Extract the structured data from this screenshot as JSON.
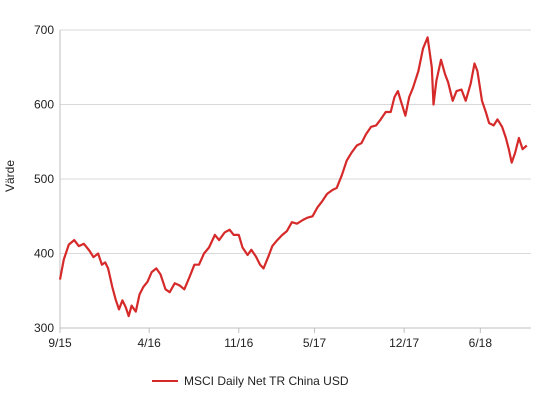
{
  "chart_data": {
    "type": "line",
    "title": "",
    "xlabel": "",
    "ylabel": "Värde",
    "ylim": [
      300,
      700
    ],
    "yticks": [
      300,
      400,
      500,
      600,
      700
    ],
    "xlim": [
      "2015-09-01",
      "2018-09-30"
    ],
    "xticks": [
      {
        "date": "2015-09-01",
        "label": "9/15"
      },
      {
        "date": "2016-04-01",
        "label": "4/16"
      },
      {
        "date": "2016-11-01",
        "label": "11/16"
      },
      {
        "date": "2017-05-01",
        "label": "5/17"
      },
      {
        "date": "2017-12-01",
        "label": "12/17"
      },
      {
        "date": "2018-06-01",
        "label": "6/18"
      }
    ],
    "grid": {
      "horizontal": true,
      "vertical": false
    },
    "legend_position": "bottom",
    "series": [
      {
        "name": "MSCI Daily Net TR China USD",
        "color": "#d62a2a",
        "points": [
          [
            "2015-09-01",
            365
          ],
          [
            "2015-09-10",
            392
          ],
          [
            "2015-09-22",
            412
          ],
          [
            "2015-10-05",
            418
          ],
          [
            "2015-10-16",
            410
          ],
          [
            "2015-10-28",
            413
          ],
          [
            "2015-11-10",
            404
          ],
          [
            "2015-11-20",
            395
          ],
          [
            "2015-12-01",
            400
          ],
          [
            "2015-12-10",
            385
          ],
          [
            "2015-12-18",
            388
          ],
          [
            "2015-12-25",
            380
          ],
          [
            "2016-01-04",
            355
          ],
          [
            "2016-01-12",
            338
          ],
          [
            "2016-01-20",
            325
          ],
          [
            "2016-01-28",
            337
          ],
          [
            "2016-02-05",
            328
          ],
          [
            "2016-02-12",
            316
          ],
          [
            "2016-02-19",
            330
          ],
          [
            "2016-02-29",
            322
          ],
          [
            "2016-03-09",
            345
          ],
          [
            "2016-03-18",
            355
          ],
          [
            "2016-03-28",
            362
          ],
          [
            "2016-04-07",
            375
          ],
          [
            "2016-04-18",
            380
          ],
          [
            "2016-04-28",
            372
          ],
          [
            "2016-05-10",
            352
          ],
          [
            "2016-05-20",
            348
          ],
          [
            "2016-06-01",
            360
          ],
          [
            "2016-06-13",
            357
          ],
          [
            "2016-06-24",
            352
          ],
          [
            "2016-07-06",
            368
          ],
          [
            "2016-07-18",
            385
          ],
          [
            "2016-07-29",
            385
          ],
          [
            "2016-08-10",
            400
          ],
          [
            "2016-08-22",
            408
          ],
          [
            "2016-09-05",
            425
          ],
          [
            "2016-09-15",
            418
          ],
          [
            "2016-09-28",
            428
          ],
          [
            "2016-10-10",
            432
          ],
          [
            "2016-10-20",
            425
          ],
          [
            "2016-11-01",
            425
          ],
          [
            "2016-11-10",
            408
          ],
          [
            "2016-11-22",
            398
          ],
          [
            "2016-12-01",
            405
          ],
          [
            "2016-12-12",
            396
          ],
          [
            "2016-12-22",
            385
          ],
          [
            "2016-12-30",
            380
          ],
          [
            "2017-01-10",
            395
          ],
          [
            "2017-01-20",
            410
          ],
          [
            "2017-02-01",
            418
          ],
          [
            "2017-02-13",
            425
          ],
          [
            "2017-02-24",
            430
          ],
          [
            "2017-03-08",
            442
          ],
          [
            "2017-03-20",
            440
          ],
          [
            "2017-04-03",
            445
          ],
          [
            "2017-04-14",
            448
          ],
          [
            "2017-04-26",
            450
          ],
          [
            "2017-05-08",
            462
          ],
          [
            "2017-05-19",
            470
          ],
          [
            "2017-05-31",
            480
          ],
          [
            "2017-06-12",
            485
          ],
          [
            "2017-06-23",
            488
          ],
          [
            "2017-07-05",
            505
          ],
          [
            "2017-07-17",
            525
          ],
          [
            "2017-07-28",
            535
          ],
          [
            "2017-08-10",
            545
          ],
          [
            "2017-08-21",
            548
          ],
          [
            "2017-09-01",
            560
          ],
          [
            "2017-09-13",
            570
          ],
          [
            "2017-09-25",
            572
          ],
          [
            "2017-10-06",
            580
          ],
          [
            "2017-10-18",
            590
          ],
          [
            "2017-10-30",
            590
          ],
          [
            "2017-11-08",
            610
          ],
          [
            "2017-11-16",
            618
          ],
          [
            "2017-11-23",
            605
          ],
          [
            "2017-12-04",
            585
          ],
          [
            "2017-12-13",
            610
          ],
          [
            "2017-12-22",
            622
          ],
          [
            "2018-01-04",
            645
          ],
          [
            "2018-01-15",
            675
          ],
          [
            "2018-01-26",
            690
          ],
          [
            "2018-02-05",
            650
          ],
          [
            "2018-02-09",
            600
          ],
          [
            "2018-02-16",
            632
          ],
          [
            "2018-02-27",
            660
          ],
          [
            "2018-03-09",
            640
          ],
          [
            "2018-03-16",
            630
          ],
          [
            "2018-03-27",
            605
          ],
          [
            "2018-04-05",
            618
          ],
          [
            "2018-04-17",
            620
          ],
          [
            "2018-04-27",
            605
          ],
          [
            "2018-05-09",
            628
          ],
          [
            "2018-05-18",
            655
          ],
          [
            "2018-05-25",
            645
          ],
          [
            "2018-06-05",
            605
          ],
          [
            "2018-06-14",
            590
          ],
          [
            "2018-06-22",
            575
          ],
          [
            "2018-07-03",
            572
          ],
          [
            "2018-07-12",
            580
          ],
          [
            "2018-07-23",
            570
          ],
          [
            "2018-08-01",
            555
          ],
          [
            "2018-08-08",
            540
          ],
          [
            "2018-08-15",
            522
          ],
          [
            "2018-08-23",
            535
          ],
          [
            "2018-09-01",
            555
          ],
          [
            "2018-09-10",
            540
          ],
          [
            "2018-09-20",
            545
          ]
        ]
      }
    ]
  },
  "legend": {
    "label": "MSCI Daily Net TR China USD"
  }
}
